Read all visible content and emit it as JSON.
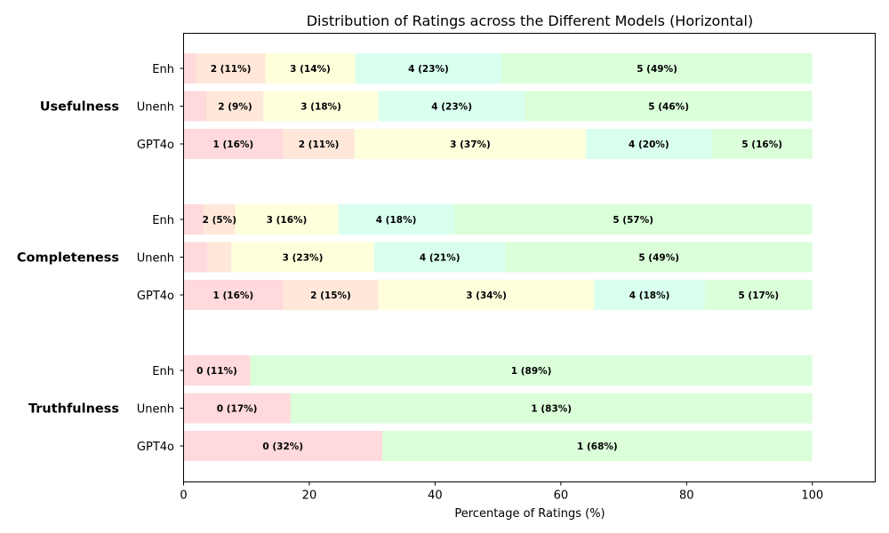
{
  "chart_data": {
    "type": "bar",
    "orientation": "horizontal",
    "stacked": true,
    "title": "Distribution of Ratings across the Different Models (Horizontal)",
    "xlabel": "Percentage of Ratings (%)",
    "ylabel": "",
    "xlim": [
      0,
      110
    ],
    "xticks": [
      0,
      20,
      40,
      60,
      80,
      100
    ],
    "grid": false,
    "legend": "none",
    "colors": {
      "r0": "#ffd9dc",
      "r1": "#ffd9dc",
      "r2": "#ffe8d9",
      "r3": "#ffffdc",
      "r4": "#d9ffee",
      "r5": "#daffd9",
      "truth1": "#daffd9"
    },
    "groups": [
      {
        "name": "Usefulness",
        "bars": [
          {
            "model": "Enh",
            "segments": [
              {
                "rating": "1",
                "value": 2,
                "label": "",
                "color_key": "r1"
              },
              {
                "rating": "2",
                "value": 11,
                "label": "2 (11%)",
                "color_key": "r2"
              },
              {
                "rating": "3",
                "value": 14.3,
                "label": "3 (14%)",
                "color_key": "r3"
              },
              {
                "rating": "4",
                "value": 23.3,
                "label": "4 (23%)",
                "color_key": "r4"
              },
              {
                "rating": "5",
                "value": 49.4,
                "label": "5 (49%)",
                "color_key": "r5"
              }
            ]
          },
          {
            "model": "Unenh",
            "segments": [
              {
                "rating": "1",
                "value": 3.7,
                "label": "",
                "color_key": "r1"
              },
              {
                "rating": "2",
                "value": 9,
                "label": "2 (9%)",
                "color_key": "r2"
              },
              {
                "rating": "3",
                "value": 18.3,
                "label": "3 (18%)",
                "color_key": "r3"
              },
              {
                "rating": "4",
                "value": 23.3,
                "label": "4 (23%)",
                "color_key": "r4"
              },
              {
                "rating": "5",
                "value": 45.7,
                "label": "5 (46%)",
                "color_key": "r5"
              }
            ]
          },
          {
            "model": "GPT4o",
            "segments": [
              {
                "rating": "1",
                "value": 15.8,
                "label": "1 (16%)",
                "color_key": "r1"
              },
              {
                "rating": "2",
                "value": 11.4,
                "label": "2 (11%)",
                "color_key": "r2"
              },
              {
                "rating": "3",
                "value": 36.8,
                "label": "3 (37%)",
                "color_key": "r3"
              },
              {
                "rating": "4",
                "value": 20,
                "label": "4 (20%)",
                "color_key": "r4"
              },
              {
                "rating": "5",
                "value": 16,
                "label": "5 (16%)",
                "color_key": "r5"
              }
            ]
          }
        ]
      },
      {
        "name": "Completeness",
        "bars": [
          {
            "model": "Enh",
            "segments": [
              {
                "rating": "1",
                "value": 3.2,
                "label": "",
                "color_key": "r1"
              },
              {
                "rating": "2",
                "value": 5,
                "label": "2 (5%)",
                "color_key": "r2"
              },
              {
                "rating": "3",
                "value": 16.4,
                "label": "3 (16%)",
                "color_key": "r3"
              },
              {
                "rating": "4",
                "value": 18.4,
                "label": "4 (18%)",
                "color_key": "r4"
              },
              {
                "rating": "5",
                "value": 57,
                "label": "5 (57%)",
                "color_key": "r5"
              }
            ]
          },
          {
            "model": "Unenh",
            "segments": [
              {
                "rating": "1",
                "value": 3.8,
                "label": "",
                "color_key": "r1"
              },
              {
                "rating": "2",
                "value": 3.8,
                "label": "",
                "color_key": "r2"
              },
              {
                "rating": "3",
                "value": 22.7,
                "label": "3 (23%)",
                "color_key": "r3"
              },
              {
                "rating": "4",
                "value": 20.9,
                "label": "4 (21%)",
                "color_key": "r4"
              },
              {
                "rating": "5",
                "value": 48.8,
                "label": "5 (49%)",
                "color_key": "r5"
              }
            ]
          },
          {
            "model": "GPT4o",
            "segments": [
              {
                "rating": "1",
                "value": 15.8,
                "label": "1 (16%)",
                "color_key": "r1"
              },
              {
                "rating": "2",
                "value": 15.2,
                "label": "2 (15%)",
                "color_key": "r2"
              },
              {
                "rating": "3",
                "value": 34.3,
                "label": "3 (34%)",
                "color_key": "r3"
              },
              {
                "rating": "4",
                "value": 17.6,
                "label": "4 (18%)",
                "color_key": "r4"
              },
              {
                "rating": "5",
                "value": 17.1,
                "label": "5 (17%)",
                "color_key": "r5"
              }
            ]
          }
        ]
      },
      {
        "name": "Truthfulness",
        "bars": [
          {
            "model": "Enh",
            "segments": [
              {
                "rating": "0",
                "value": 10.6,
                "label": "0 (11%)",
                "color_key": "r0"
              },
              {
                "rating": "1",
                "value": 89.4,
                "label": "1 (89%)",
                "color_key": "truth1"
              }
            ]
          },
          {
            "model": "Unenh",
            "segments": [
              {
                "rating": "0",
                "value": 17,
                "label": "0 (17%)",
                "color_key": "r0"
              },
              {
                "rating": "1",
                "value": 83,
                "label": "1 (83%)",
                "color_key": "truth1"
              }
            ]
          },
          {
            "model": "GPT4o",
            "segments": [
              {
                "rating": "0",
                "value": 31.6,
                "label": "0 (32%)",
                "color_key": "r0"
              },
              {
                "rating": "1",
                "value": 68.4,
                "label": "1 (68%)",
                "color_key": "truth1"
              }
            ]
          }
        ]
      }
    ]
  }
}
